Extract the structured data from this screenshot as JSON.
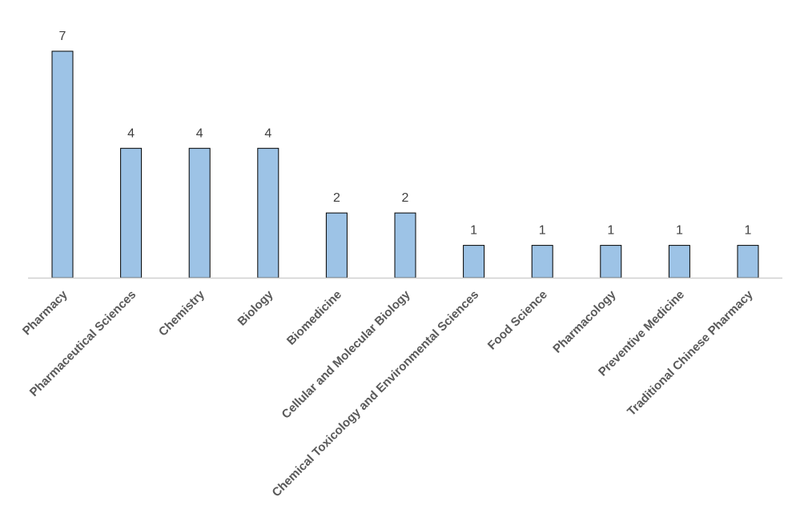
{
  "chart_data": {
    "type": "bar",
    "categories": [
      "Pharmacy",
      "Pharmaceutical Sciences",
      "Chemistry",
      "Biology",
      "Biomedicine",
      "Cellular and Molecular Biology",
      "Chemical Toxicology and Environmental Sciences",
      "Food Science",
      "Pharmacology",
      "Preventive Medicine",
      "Traditional Chinese Pharmacy"
    ],
    "values": [
      7,
      4,
      4,
      4,
      2,
      2,
      1,
      1,
      1,
      1,
      1
    ],
    "title": "",
    "xlabel": "",
    "ylabel": "",
    "ylim": [
      0,
      7
    ],
    "grid": false,
    "data_labels": true,
    "bar_color": "#9dc3e6",
    "bar_edge_color": "#000000"
  }
}
